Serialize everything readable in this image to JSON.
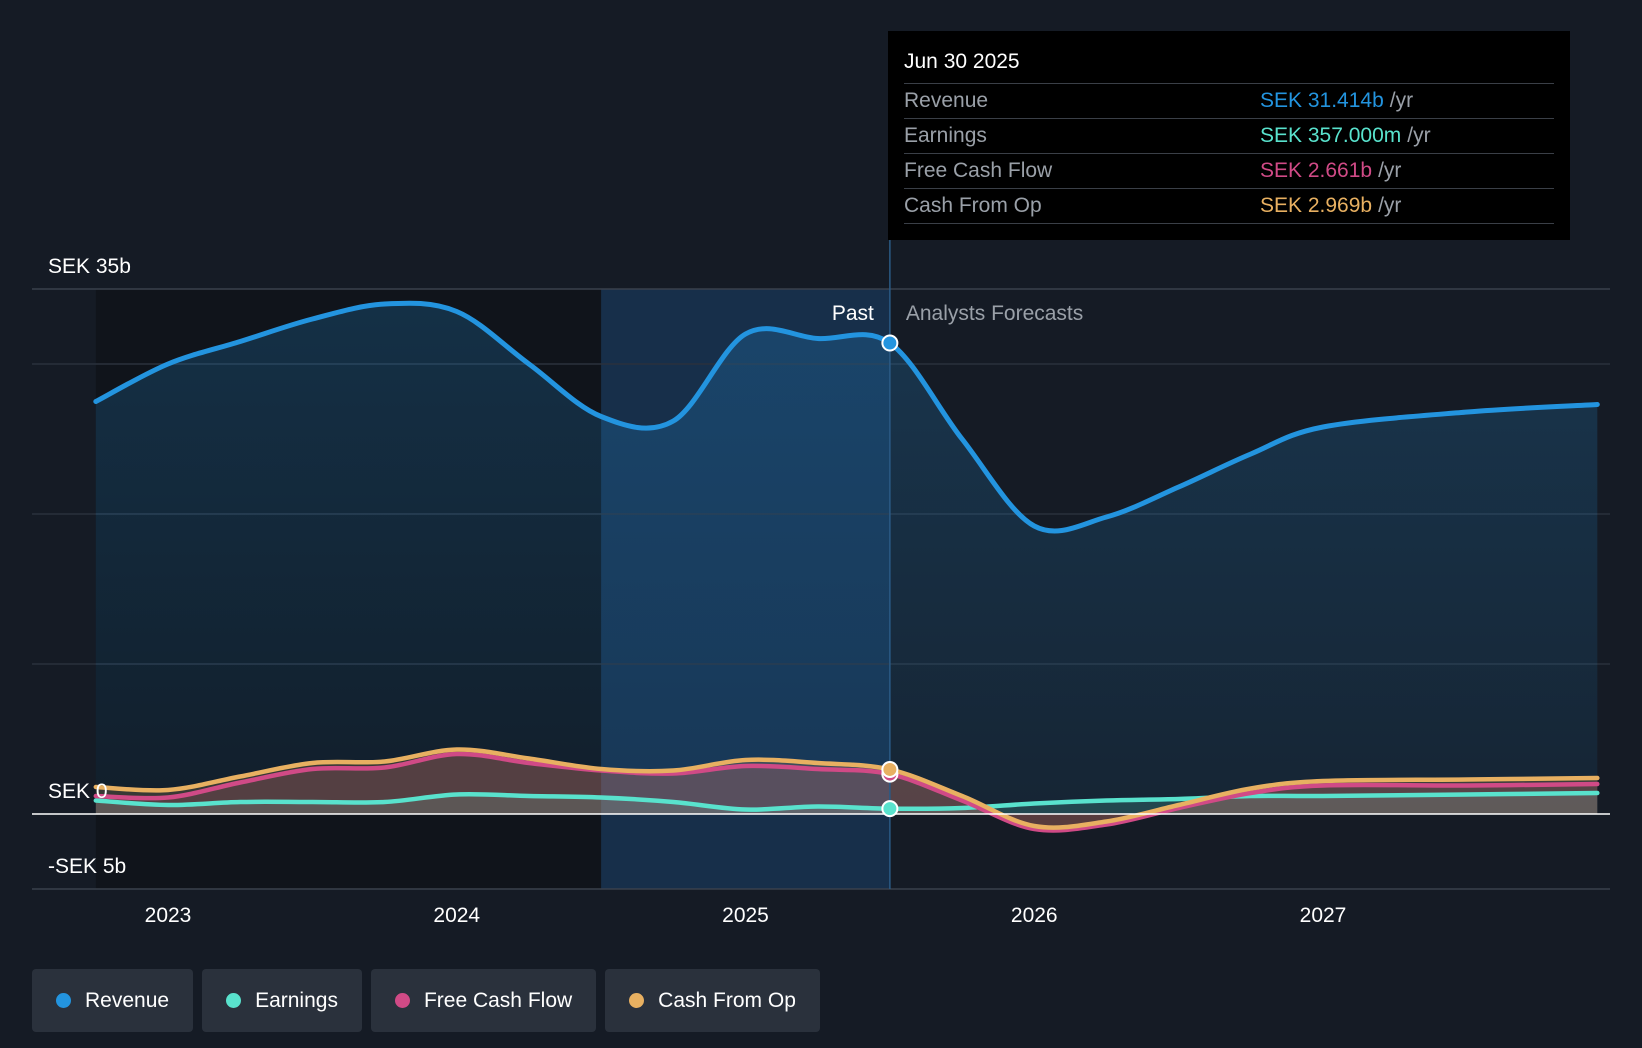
{
  "colors": {
    "revenue": "#2394df",
    "earnings": "#59e2cd",
    "free_cash_flow": "#d04a86",
    "cash_from_op": "#e8b061"
  },
  "tooltip": {
    "date": "Jun 30 2025",
    "rows": [
      {
        "label": "Revenue",
        "value": "SEK 31.414b",
        "unit": "/yr",
        "color": "#2394df"
      },
      {
        "label": "Earnings",
        "value": "SEK 357.000m",
        "unit": "/yr",
        "color": "#59e2cd"
      },
      {
        "label": "Free Cash Flow",
        "value": "SEK 2.661b",
        "unit": "/yr",
        "color": "#d04a86"
      },
      {
        "label": "Cash From Op",
        "value": "SEK 2.969b",
        "unit": "/yr",
        "color": "#e8b061"
      }
    ]
  },
  "legend": [
    {
      "label": "Revenue",
      "color": "#2394df"
    },
    {
      "label": "Earnings",
      "color": "#59e2cd"
    },
    {
      "label": "Free Cash Flow",
      "color": "#d04a86"
    },
    {
      "label": "Cash From Op",
      "color": "#e8b061"
    }
  ],
  "chart_data": {
    "type": "area",
    "y_tick_labels": [
      "SEK 35b",
      "SEK 0",
      "-SEK 5b"
    ],
    "ylim": [
      -5,
      35
    ],
    "xlim": [
      2022.75,
      2027.95
    ],
    "x_ticks": [
      2023,
      2024,
      2025,
      2026,
      2027
    ],
    "x_tick_labels": [
      "2023",
      "2024",
      "2025",
      "2026",
      "2027"
    ],
    "past_label": "Past",
    "forecast_label": "Analysts Forecasts",
    "past_end": 2025.5,
    "highlight_start": 2024.5,
    "grid": true,
    "legend_position": "bottom-left",
    "series": [
      {
        "name": "Revenue",
        "color": "#2394df",
        "x": [
          2022.75,
          2023.0,
          2023.25,
          2023.5,
          2023.75,
          2024.0,
          2024.25,
          2024.5,
          2024.75,
          2025.0,
          2025.25,
          2025.5,
          2025.75,
          2026.0,
          2026.25,
          2026.5,
          2026.75,
          2027.0,
          2027.5,
          2027.95
        ],
        "y": [
          27.5,
          30.0,
          31.5,
          33.0,
          34.0,
          33.5,
          30.0,
          26.5,
          26.2,
          32.0,
          31.7,
          31.4,
          25.0,
          19.2,
          19.8,
          21.8,
          24.0,
          25.8,
          26.8,
          27.3
        ]
      },
      {
        "name": "Earnings",
        "color": "#59e2cd",
        "x": [
          2022.75,
          2023.0,
          2023.25,
          2023.5,
          2023.75,
          2024.0,
          2024.25,
          2024.5,
          2024.75,
          2025.0,
          2025.25,
          2025.5,
          2025.75,
          2026.0,
          2026.25,
          2026.5,
          2026.75,
          2027.0,
          2027.5,
          2027.95
        ],
        "y": [
          0.9,
          0.6,
          0.8,
          0.8,
          0.8,
          1.3,
          1.2,
          1.1,
          0.8,
          0.3,
          0.5,
          0.357,
          0.4,
          0.7,
          0.9,
          1.0,
          1.2,
          1.2,
          1.3,
          1.4
        ]
      },
      {
        "name": "Free Cash Flow",
        "color": "#d04a86",
        "x": [
          2022.75,
          2023.0,
          2023.25,
          2023.5,
          2023.75,
          2024.0,
          2024.25,
          2024.5,
          2024.75,
          2025.0,
          2025.25,
          2025.5,
          2025.75,
          2026.0,
          2026.25,
          2026.5,
          2026.75,
          2027.0,
          2027.5,
          2027.95
        ],
        "y": [
          1.2,
          1.1,
          2.1,
          3.0,
          3.1,
          4.0,
          3.4,
          2.9,
          2.7,
          3.2,
          3.0,
          2.661,
          0.9,
          -1.0,
          -0.7,
          0.4,
          1.4,
          1.9,
          1.9,
          2.0
        ]
      },
      {
        "name": "Cash From Op",
        "color": "#e8b061",
        "x": [
          2022.75,
          2023.0,
          2023.25,
          2023.5,
          2023.75,
          2024.0,
          2024.25,
          2024.5,
          2024.75,
          2025.0,
          2025.25,
          2025.5,
          2025.75,
          2026.0,
          2026.25,
          2026.5,
          2026.75,
          2027.0,
          2027.5,
          2027.95
        ],
        "y": [
          1.8,
          1.6,
          2.5,
          3.4,
          3.5,
          4.3,
          3.7,
          3.0,
          2.9,
          3.6,
          3.4,
          2.969,
          1.2,
          -0.8,
          -0.5,
          0.6,
          1.7,
          2.2,
          2.3,
          2.4
        ]
      }
    ]
  }
}
